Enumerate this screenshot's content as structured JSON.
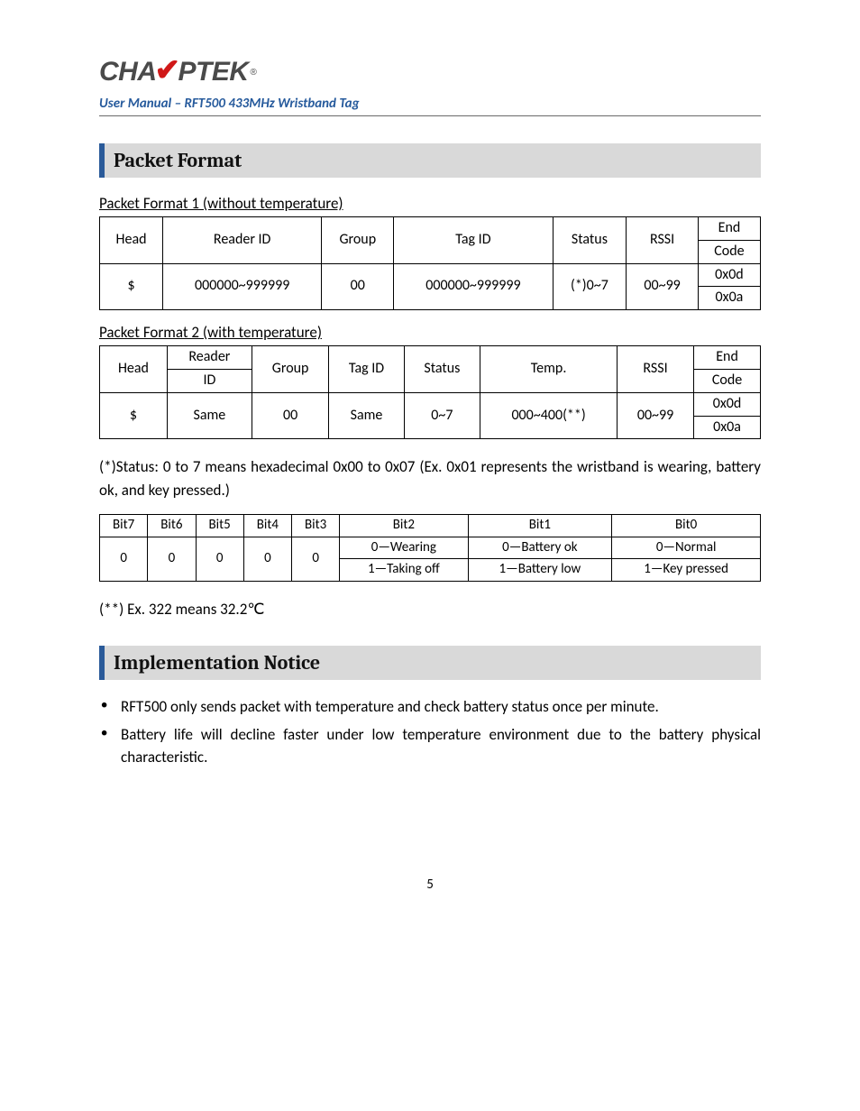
{
  "header": {
    "logo_left": "CHA",
    "logo_right": "PTEK",
    "logo_reg": "®",
    "subtitle": "User Manual – RFT500 433MHz Wristband Tag"
  },
  "section1": {
    "title": "Packet Format",
    "caption1": "Packet Format 1 (without temperature)",
    "table1": {
      "headers": [
        "Head",
        "Reader ID",
        "Group",
        "Tag ID",
        "Status",
        "RSSI",
        "End Code"
      ],
      "row": [
        "$",
        "000000~999999",
        "00",
        "000000~999999",
        "(*)0~7",
        "00~99"
      ],
      "end_codes": [
        "0x0d",
        "0x0a"
      ]
    },
    "caption2": "Packet Format 2 (with temperature)",
    "table2": {
      "headers": [
        "Head",
        "Reader ID",
        "Group",
        "Tag ID",
        "Status",
        "Temp.",
        "RSSI",
        "End Code"
      ],
      "row": [
        "$",
        "Same",
        "00",
        "Same",
        "0~7",
        "000~400(**)",
        "00~99"
      ],
      "end_codes": [
        "0x0d",
        "0x0a"
      ]
    },
    "status_note": "(*)Status: 0 to 7 means hexadecimal 0x00 to 0x07 (Ex. 0x01 represents the wristband is wearing, battery ok, and key pressed.)",
    "bits": {
      "headers": [
        "Bit7",
        "Bit6",
        "Bit5",
        "Bit4",
        "Bit3",
        "Bit2",
        "Bit1",
        "Bit0"
      ],
      "fixed": [
        "0",
        "0",
        "0",
        "0",
        "0"
      ],
      "bit2": [
        "0—Wearing",
        "1—Taking off"
      ],
      "bit1": [
        "0—Battery ok",
        "1—Battery low"
      ],
      "bit0": [
        "0—Normal",
        "1—Key pressed"
      ]
    },
    "temp_note": "(**) Ex. 322 means 32.2℃"
  },
  "section2": {
    "title": "Implementation Notice",
    "bullets": [
      "RFT500 only sends packet with temperature  and check battery status once per minute.",
      "Battery life will decline faster under low temperature environment due to the battery physical characteristic."
    ]
  },
  "page_number": "5"
}
